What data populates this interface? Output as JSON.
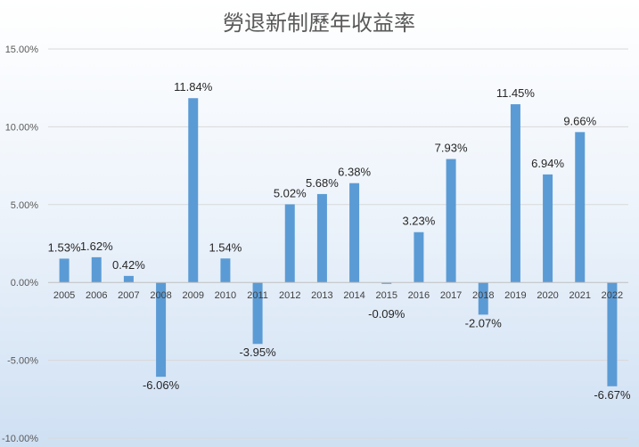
{
  "chart_data": {
    "type": "bar",
    "title": "勞退新制歷年收益率",
    "xlabel": "",
    "ylabel": "",
    "categories": [
      "2005",
      "2006",
      "2007",
      "2008",
      "2009",
      "2010",
      "2011",
      "2012",
      "2013",
      "2014",
      "2015",
      "2016",
      "2017",
      "2018",
      "2019",
      "2020",
      "2021",
      "2022"
    ],
    "values": [
      1.53,
      1.62,
      0.42,
      -6.06,
      11.84,
      1.54,
      -3.95,
      5.02,
      5.68,
      6.38,
      -0.09,
      3.23,
      7.93,
      -2.07,
      11.45,
      6.94,
      9.66,
      -6.67
    ],
    "data_labels": [
      "1.53%",
      "1.62%",
      "0.42%",
      "-6.06%",
      "11.84%",
      "1.54%",
      "-3.95%",
      "5.02%",
      "5.68%",
      "6.38%",
      "-0.09%",
      "3.23%",
      "7.93%",
      "-2.07%",
      "11.45%",
      "6.94%",
      "9.66%",
      "-6.67%"
    ],
    "yticks": [
      15,
      10,
      5,
      0,
      -5,
      -10
    ],
    "ytick_labels": [
      "15.00%",
      "10.00%",
      "5.00%",
      "0.00%",
      "-5.00%",
      "-10.00%"
    ],
    "ylim": [
      -10,
      15
    ],
    "grid": true,
    "legend": "none",
    "bar_color": "#5b9bd5"
  }
}
